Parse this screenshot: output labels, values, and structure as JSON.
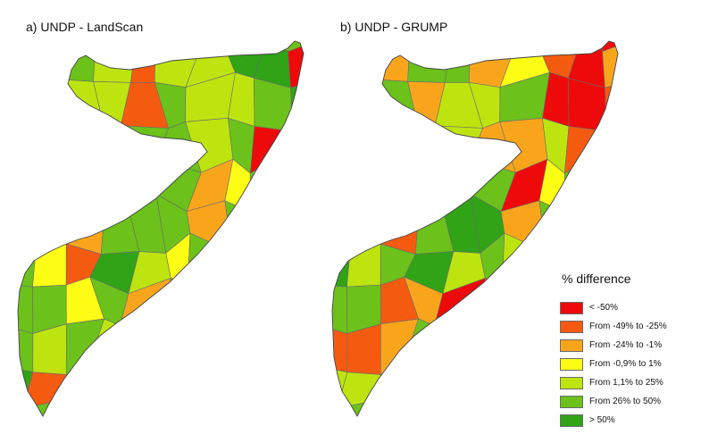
{
  "panels": [
    {
      "title": "a) UNDP - LandScan",
      "regions": [
        "c6",
        "c6",
        "c4",
        "c6",
        "c3",
        "c6",
        "c6",
        "c5",
        "c5",
        "c6",
        "c7",
        "c6",
        "c5",
        "c6",
        "c5",
        "c2",
        "c5",
        "c5",
        "c7",
        "c7",
        "c1",
        "c2",
        "c7",
        "c2",
        "c5",
        "c5",
        "c2",
        "c6",
        "c5",
        "c5",
        "c6",
        "c7",
        "c2",
        "c6",
        "c6",
        "c4",
        "c5",
        "c6",
        "c6",
        "c5",
        "c6",
        "c1",
        "c3",
        "c3",
        "c5",
        "c6",
        "c6",
        "c3",
        "c3",
        "c6",
        "c3",
        "c4",
        "c6",
        "c5",
        "c3",
        "c6",
        "c6",
        "c3",
        "c6",
        "c6",
        "c6",
        "c3",
        "c6",
        "c6",
        "c7",
        "c3",
        "c6",
        "c4",
        "c2",
        "c7",
        "c5",
        "c4",
        "c6",
        "c7",
        "c2",
        "c6",
        "c6"
      ]
    },
    {
      "title": "b) UNDP - GRUMP",
      "regions": [
        "c6",
        "c6",
        "c2",
        "c3",
        "c1",
        "c2",
        "c1",
        "c2",
        "c1",
        "c1",
        "c3",
        "c2",
        "c2",
        "c3",
        "c6",
        "c6",
        "c3",
        "c4",
        "c2",
        "c1",
        "c3",
        "c5",
        "c5",
        "c5",
        "c6",
        "c3",
        "c5",
        "c5",
        "c6",
        "c1",
        "c1",
        "c2",
        "c6",
        "c6",
        "c6",
        "c7",
        "c6",
        "c5",
        "c3",
        "c3",
        "c5",
        "c2",
        "c3",
        "c2",
        "c2",
        "c3",
        "c6",
        "c7",
        "c3",
        "c6",
        "c1",
        "c4",
        "c6",
        "c2",
        "c3",
        "c3",
        "c6",
        "c2",
        "c6",
        "c7",
        "c7",
        "c3",
        "c6",
        "c6",
        "c6",
        "c4",
        "c7",
        "c5",
        "c6",
        "c7",
        "c5",
        "c6",
        "c5",
        "c7",
        "c6",
        "c6",
        "c7"
      ]
    }
  ],
  "legend": {
    "title": "% difference",
    "items": [
      {
        "key": "c1",
        "label": "< -50%",
        "color": "#ee0a0a"
      },
      {
        "key": "c2",
        "label": "From -49% to -25%",
        "color": "#f55a11"
      },
      {
        "key": "c3",
        "label": "From -24% to -1%",
        "color": "#f9a51c"
      },
      {
        "key": "c4",
        "label": "From -0,9% to 1%",
        "color": "#fcfc14"
      },
      {
        "key": "c5",
        "label": "From 1,1% to 25%",
        "color": "#bde40f"
      },
      {
        "key": "c6",
        "label": "From 26% to 50%",
        "color": "#6cc11a"
      },
      {
        "key": "c7",
        "label": "> 50%",
        "color": "#30a316"
      }
    ]
  }
}
